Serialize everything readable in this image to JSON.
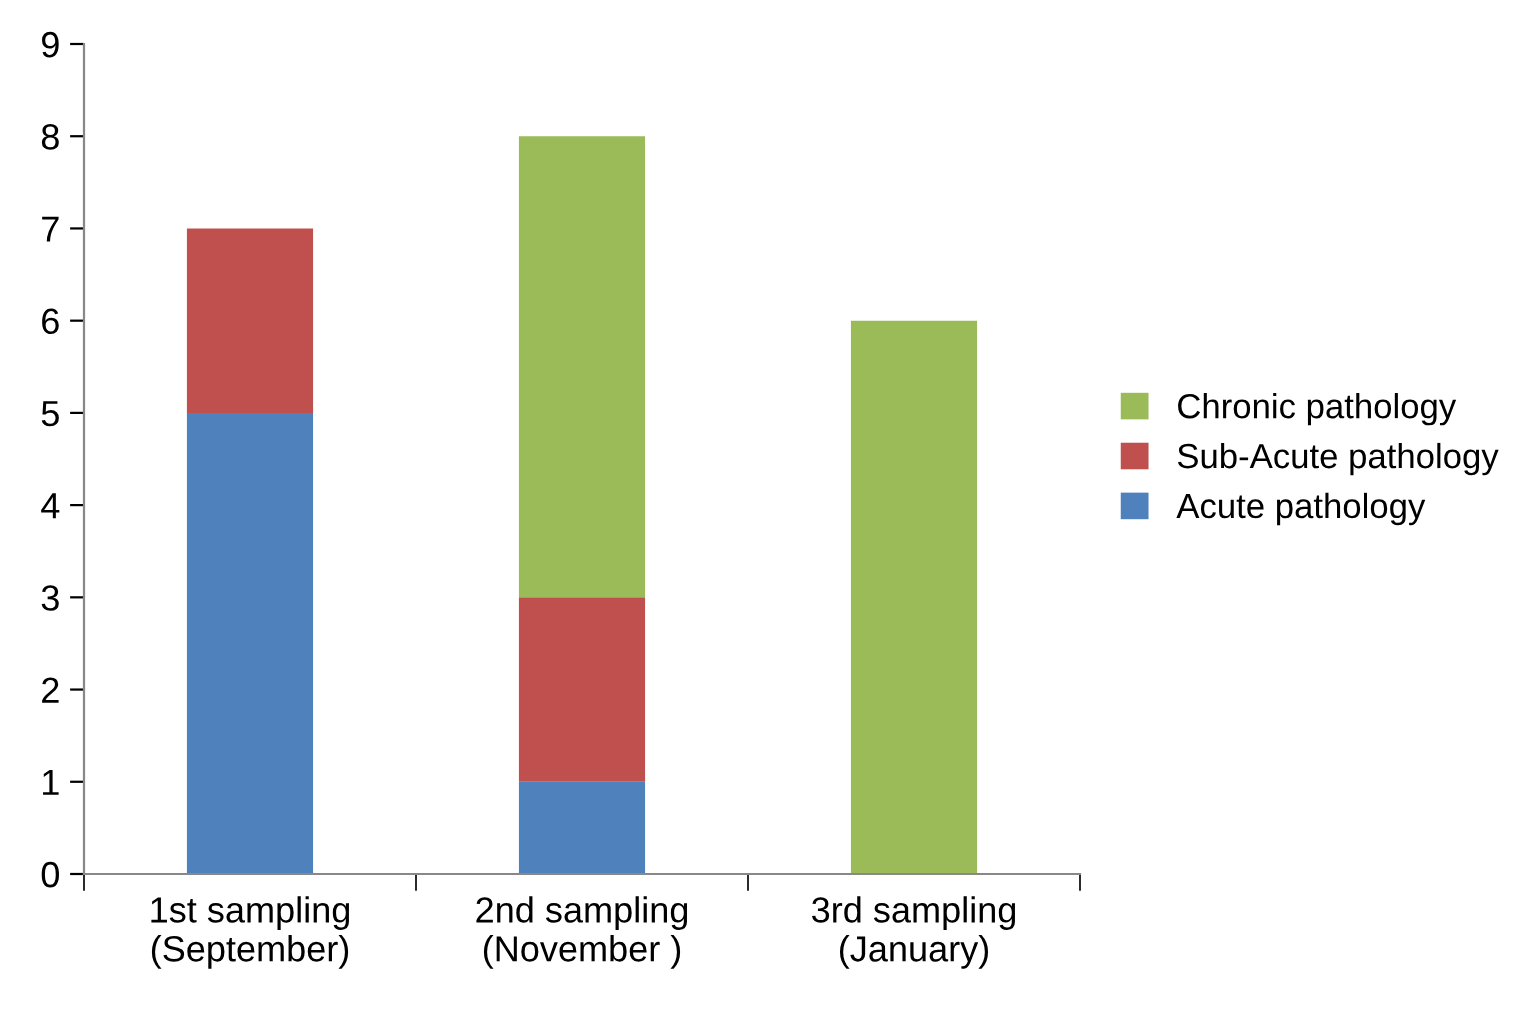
{
  "chart_data": {
    "type": "bar",
    "stacked": true,
    "categories": [
      "1st sampling\n(September)",
      "2nd sampling\n(November )",
      "3rd sampling\n(January)"
    ],
    "series": [
      {
        "name": "Acute pathology",
        "color": "#4f81bd",
        "values": [
          5,
          1,
          0
        ]
      },
      {
        "name": "Sub-Acute pathology",
        "color": "#c0504d",
        "values": [
          2,
          2,
          0
        ]
      },
      {
        "name": "Chronic pathology",
        "color": "#9bbb59",
        "values": [
          0,
          5,
          6
        ]
      }
    ],
    "ylim": [
      0,
      9
    ],
    "yticks": [
      0,
      1,
      2,
      3,
      4,
      5,
      6,
      7,
      8,
      9
    ],
    "grid": false,
    "legend": "right"
  }
}
